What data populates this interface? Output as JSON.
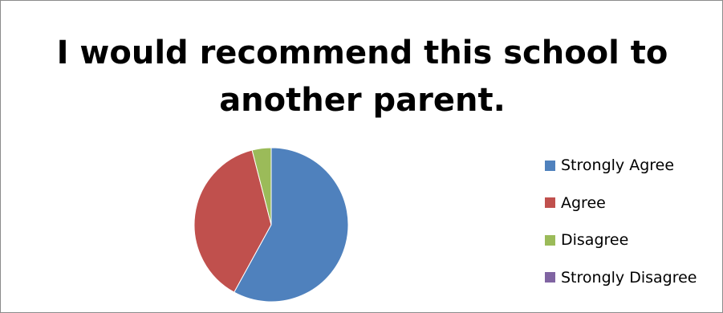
{
  "chart_data": {
    "type": "pie",
    "title_lines": [
      "I would recommend this school to",
      "another parent."
    ],
    "slices": [
      {
        "label": "Strongly Agree",
        "value": 58,
        "color": "#4f81bd"
      },
      {
        "label": "Agree",
        "value": 38,
        "color": "#c0504d"
      },
      {
        "label": "Disagree",
        "value": 4,
        "color": "#9bbb59"
      },
      {
        "label": "Strongly Disagree",
        "value": 0,
        "color": "#8064a2"
      }
    ],
    "legend_position": "right"
  }
}
